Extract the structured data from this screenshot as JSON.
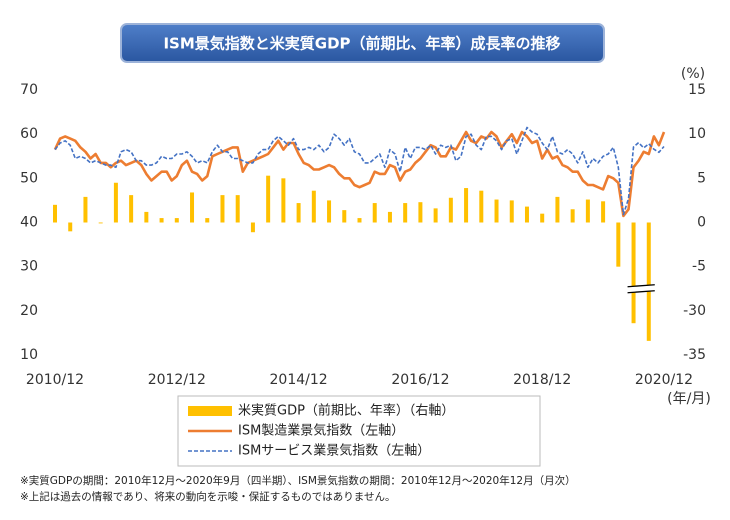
{
  "chart_data": {
    "type": "combo",
    "title": "ISM景気指数と米実質GDP（前期比、年率）成長率の推移",
    "x_label": "(年/月)",
    "y2_label": "(%)",
    "categories": [
      "2010/12",
      null,
      null,
      null,
      null,
      null,
      null,
      null,
      null,
      null,
      null,
      null,
      null,
      null,
      null,
      null,
      null,
      null,
      null,
      null,
      null,
      null,
      null,
      null,
      "2012/12",
      null,
      null,
      null,
      null,
      null,
      null,
      null,
      null,
      null,
      null,
      null,
      null,
      null,
      null,
      null,
      null,
      null,
      null,
      null,
      null,
      null,
      null,
      null,
      "2014/12",
      null,
      null,
      null,
      null,
      null,
      null,
      null,
      null,
      null,
      null,
      null,
      null,
      null,
      null,
      null,
      null,
      null,
      null,
      null,
      null,
      null,
      null,
      null,
      "2016/12",
      null,
      null,
      null,
      null,
      null,
      null,
      null,
      null,
      null,
      null,
      null,
      null,
      null,
      null,
      null,
      null,
      null,
      null,
      null,
      null,
      null,
      null,
      null,
      "2018/12",
      null,
      null,
      null,
      null,
      null,
      null,
      null,
      null,
      null,
      null,
      null,
      null,
      null,
      null,
      null,
      null,
      null,
      null,
      null,
      null,
      null,
      null,
      null,
      "2020/12"
    ],
    "ylim": [
      10,
      70
    ],
    "yticks": [
      10,
      20,
      30,
      40,
      50,
      60,
      70
    ],
    "y2lim": [
      -35,
      15
    ],
    "y2ticks": [
      -35,
      -30,
      -5,
      0,
      5,
      10,
      15
    ],
    "y2_axis_break": true,
    "series": [
      {
        "name": "米実質GDP（前期比、年率）（右軸）",
        "type": "bar",
        "axis": "y2",
        "color": "#FFC000",
        "values": [
          2.0,
          null,
          null,
          -1.0,
          null,
          null,
          2.9,
          null,
          null,
          -0.1,
          null,
          null,
          4.5,
          null,
          null,
          3.1,
          null,
          null,
          1.2,
          null,
          null,
          0.5,
          null,
          null,
          0.5,
          null,
          null,
          3.4,
          null,
          null,
          0.5,
          null,
          null,
          3.1,
          null,
          null,
          3.1,
          null,
          null,
          -1.1,
          null,
          null,
          5.3,
          null,
          null,
          5.0,
          null,
          null,
          2.2,
          null,
          null,
          3.6,
          null,
          null,
          2.5,
          null,
          null,
          1.4,
          null,
          null,
          0.5,
          null,
          null,
          2.2,
          null,
          null,
          1.2,
          null,
          null,
          2.2,
          null,
          null,
          2.3,
          null,
          null,
          1.6,
          null,
          null,
          2.8,
          null,
          null,
          3.9,
          null,
          null,
          3.6,
          null,
          null,
          2.6,
          null,
          null,
          2.5,
          null,
          null,
          1.8,
          null,
          null,
          1.0,
          null,
          null,
          2.9,
          null,
          null,
          1.5,
          null,
          null,
          2.6,
          null,
          null,
          2.4,
          null,
          null,
          -5.0,
          null,
          null,
          -31.4,
          null,
          null,
          -33.4,
          null,
          null,
          null
        ]
      },
      {
        "name": "ISM製造業景気指数（左軸）",
        "type": "line",
        "color": "#ED7D31",
        "values": [
          56.5,
          59.0,
          59.5,
          59.0,
          58.5,
          57.0,
          56.0,
          54.5,
          55.5,
          53.5,
          53.5,
          52.5,
          53.5,
          54.0,
          53.0,
          53.5,
          54.0,
          53.0,
          51.0,
          49.5,
          50.5,
          51.5,
          51.5,
          49.5,
          50.5,
          53.0,
          54.0,
          51.5,
          51.0,
          49.5,
          50.5,
          55.0,
          55.5,
          56.0,
          56.5,
          57.0,
          57.0,
          51.5,
          53.5,
          54.0,
          54.5,
          55.0,
          55.5,
          57.0,
          58.5,
          56.5,
          58.0,
          58.0,
          55.5,
          53.5,
          53.0,
          52.0,
          52.0,
          52.5,
          53.0,
          52.5,
          51.0,
          50.0,
          50.0,
          48.5,
          48.0,
          48.5,
          49.0,
          51.5,
          51.0,
          51.0,
          53.0,
          52.5,
          49.5,
          51.5,
          52.0,
          53.5,
          54.5,
          56.0,
          57.5,
          57.0,
          55.0,
          55.0,
          57.0,
          56.5,
          58.5,
          60.5,
          58.5,
          58.0,
          59.5,
          59.0,
          60.5,
          59.5,
          57.0,
          58.5,
          60.0,
          58.0,
          60.5,
          59.5,
          58.0,
          58.5,
          54.5,
          56.5,
          54.5,
          55.0,
          53.0,
          52.5,
          51.5,
          51.5,
          49.5,
          48.5,
          48.5,
          48.0,
          47.5,
          50.5,
          50.0,
          49.0,
          41.5,
          43.0,
          52.5,
          54.0,
          56.0,
          55.5,
          59.5,
          57.5,
          60.5
        ]
      },
      {
        "name": "ISMサービス業景気指数（左軸）",
        "type": "line",
        "dashed": true,
        "color": "#4472C4",
        "values": [
          56.5,
          58.0,
          58.5,
          57.5,
          54.5,
          55.0,
          54.5,
          53.5,
          54.0,
          53.5,
          53.0,
          53.0,
          52.5,
          56.0,
          56.5,
          56.0,
          54.0,
          54.0,
          53.0,
          53.0,
          53.5,
          55.0,
          54.5,
          54.5,
          55.5,
          55.5,
          56.0,
          55.0,
          53.5,
          54.0,
          53.5,
          56.0,
          57.5,
          56.0,
          56.0,
          54.5,
          54.5,
          54.0,
          53.5,
          53.5,
          55.5,
          56.5,
          56.5,
          58.5,
          59.5,
          58.5,
          57.5,
          59.0,
          56.5,
          56.5,
          57.0,
          56.5,
          57.5,
          56.0,
          57.0,
          60.0,
          59.0,
          57.5,
          59.0,
          56.0,
          55.5,
          53.5,
          53.5,
          54.5,
          55.5,
          52.5,
          56.5,
          55.5,
          51.5,
          57.0,
          54.5,
          57.0,
          57.0,
          56.5,
          57.5,
          55.5,
          57.5,
          57.0,
          57.5,
          54.0,
          55.0,
          59.5,
          60.0,
          57.5,
          56.5,
          59.5,
          59.5,
          58.5,
          56.5,
          58.5,
          59.0,
          55.5,
          58.5,
          61.5,
          60.5,
          60.0,
          58.0,
          56.5,
          59.5,
          56.0,
          55.5,
          56.5,
          55.5,
          53.5,
          56.0,
          52.5,
          54.5,
          53.5,
          55.0,
          55.5,
          57.0,
          52.5,
          41.8,
          45.4,
          57.1,
          58.1,
          56.9,
          57.8,
          56.6,
          55.9,
          57.2
        ]
      }
    ],
    "notes": [
      "※実質GDPの期間：2010年12月～2020年9月（四半期）、ISM景気指数の期間：2010年12月～2020年12月（月次）",
      "※上記は過去の情報であり、将来の動向を示唆・保証するものではありません。"
    ]
  }
}
